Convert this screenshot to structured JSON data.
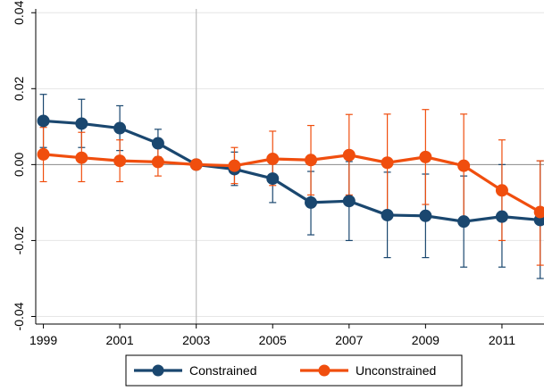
{
  "chart_data": {
    "type": "line",
    "title": "",
    "xlabel": "",
    "ylabel": "",
    "x": [
      1999,
      2000,
      2001,
      2002,
      2003,
      2004,
      2005,
      2006,
      2007,
      2008,
      2009,
      2010,
      2011,
      2012
    ],
    "xlim": [
      1998.8,
      2012.1
    ],
    "ylim": [
      -0.042,
      0.041
    ],
    "x_ticks": [
      {
        "value": 1999,
        "label": "1999"
      },
      {
        "value": 2001,
        "label": "2001"
      },
      {
        "value": 2003,
        "label": "2003"
      },
      {
        "value": 2005,
        "label": "2005"
      },
      {
        "value": 2007,
        "label": "2007"
      },
      {
        "value": 2009,
        "label": "2009"
      },
      {
        "value": 2011,
        "label": "2011"
      }
    ],
    "y_ticks": [
      {
        "value": -0.04,
        "label": "-0.04"
      },
      {
        "value": -0.02,
        "label": "-0.02"
      },
      {
        "value": 0.0,
        "label": "0.00"
      },
      {
        "value": 0.02,
        "label": "0.02"
      },
      {
        "value": 0.04,
        "label": "0.04"
      }
    ],
    "gridlines_y": [
      -0.04,
      -0.02,
      0.02,
      0.04
    ],
    "zero_line": 0.0,
    "vertical_reference_line": 2003,
    "legend_position": "bottom",
    "series": [
      {
        "name": "Constrained",
        "color": "#1a476f",
        "values": [
          0.0115,
          0.0108,
          0.0096,
          0.0056,
          0.0,
          -0.0012,
          -0.0037,
          -0.01,
          -0.0096,
          -0.0133,
          -0.0135,
          -0.015,
          -0.0137,
          -0.0146
        ],
        "ci_lower": [
          0.0045,
          0.0045,
          0.0037,
          0.002,
          0.0,
          -0.0055,
          -0.01,
          -0.0185,
          -0.02,
          -0.0245,
          -0.0245,
          -0.027,
          -0.027,
          -0.03
        ],
        "ci_upper": [
          0.0185,
          0.0172,
          0.0155,
          0.0093,
          0.0,
          0.0033,
          0.0025,
          -0.0018,
          0.0008,
          -0.002,
          -0.0025,
          -0.003,
          0.0,
          0.001
        ]
      },
      {
        "name": "Unconstrained",
        "color": "#f04e0e",
        "values": [
          0.0027,
          0.0018,
          0.001,
          0.0007,
          0.0,
          -0.0003,
          0.0015,
          0.0012,
          0.0025,
          0.0005,
          0.002,
          -0.0003,
          -0.0068,
          -0.0125
        ],
        "ci_lower": [
          -0.0045,
          -0.0045,
          -0.0045,
          -0.003,
          0.0,
          -0.005,
          -0.0055,
          -0.008,
          -0.008,
          -0.0125,
          -0.0105,
          -0.014,
          -0.02,
          -0.0265
        ],
        "ci_upper": [
          0.0098,
          0.0085,
          0.0065,
          0.0045,
          0.0,
          0.0045,
          0.0088,
          0.0103,
          0.0132,
          0.0133,
          0.0145,
          0.0133,
          0.0065,
          0.001
        ]
      }
    ]
  }
}
